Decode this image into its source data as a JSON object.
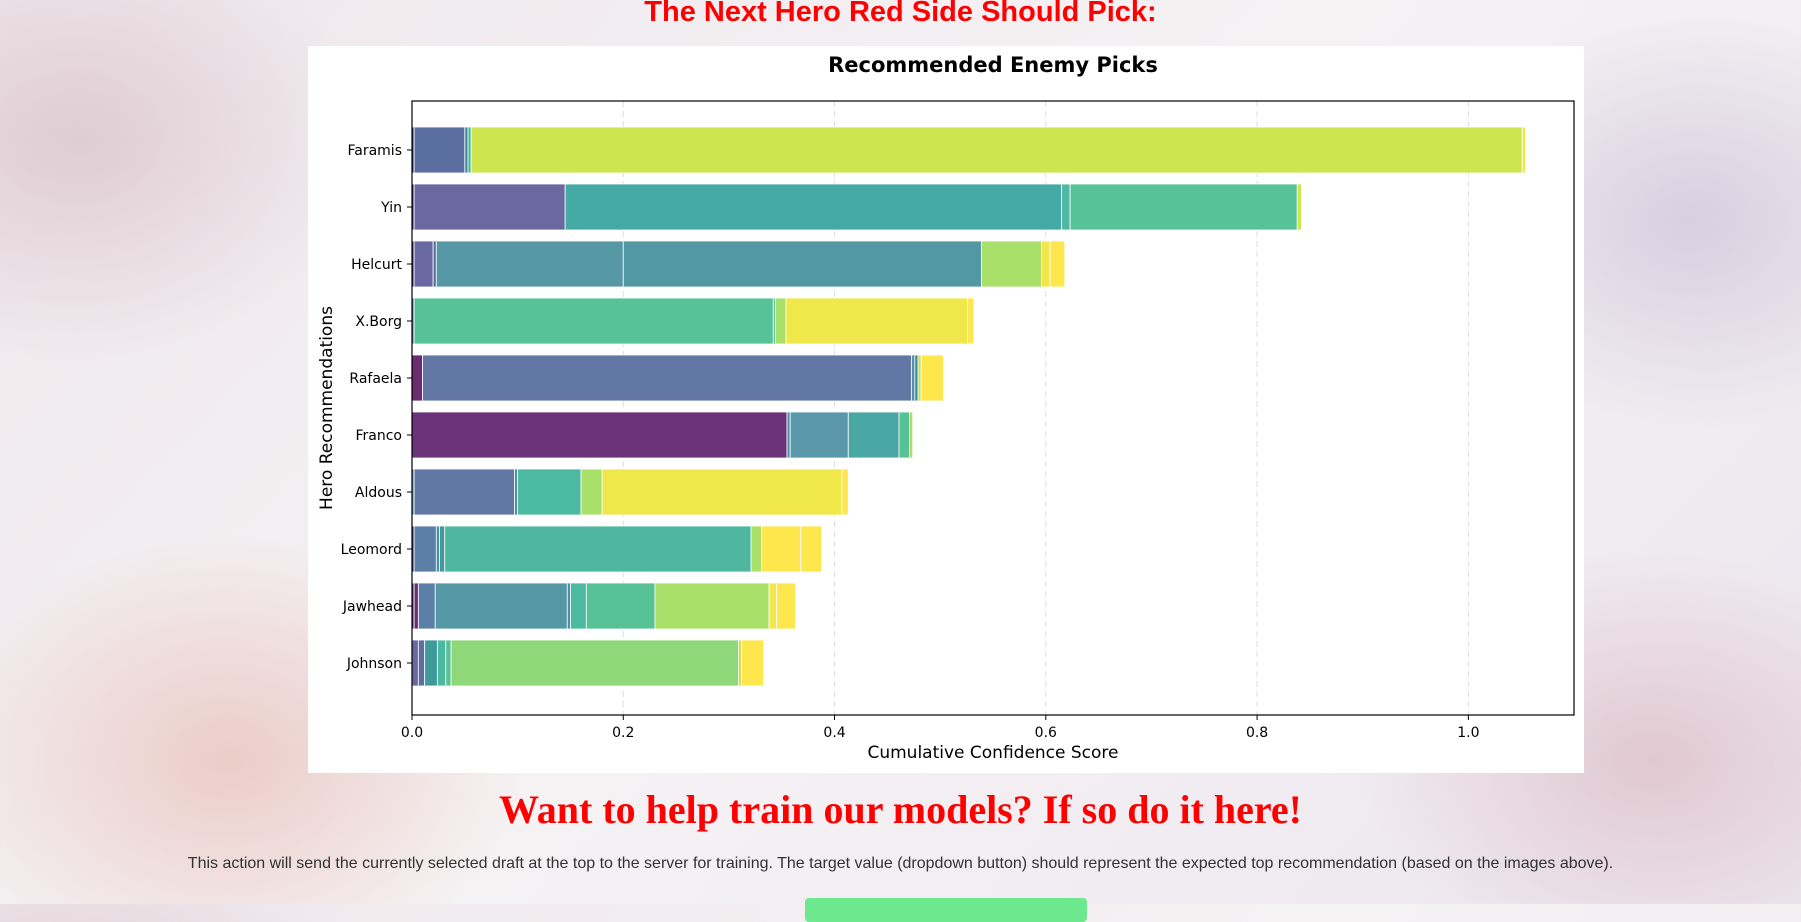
{
  "page": {
    "heading": "The Next Hero Red Side Should Pick:",
    "cta_heading": "Want to help train our models? If so do it here!",
    "info_text": "This action will send the currently selected draft at the top to the server for training. The target value (dropdown button) should represent the expected top recommendation (based on the images above).",
    "button_color": "#6ee88f"
  },
  "chart_data": {
    "type": "bar",
    "orientation": "horizontal",
    "stacked": true,
    "title": "Recommended Enemy Picks",
    "xlabel": "Cumulative Confidence Score",
    "ylabel": "Hero Recommendations",
    "xlim": [
      0,
      1.1
    ],
    "xticks": [
      "0.0",
      "0.2",
      "0.4",
      "0.6",
      "0.8",
      "1.0"
    ],
    "grid": "x dashed",
    "categories": [
      "Faramis",
      "Yin",
      "Helcurt",
      "X.Borg",
      "Rafaela",
      "Franco",
      "Aldous",
      "Leomord",
      "Jawhead",
      "Johnson"
    ],
    "segments": [
      [
        [
          0.002,
          "#482878"
        ],
        [
          0.048,
          "#5b6ea0"
        ],
        [
          0.003,
          "#3e8a9a"
        ],
        [
          0.003,
          "#48b79a"
        ],
        [
          0.995,
          "#cde54f"
        ],
        [
          0.003,
          "#f2e74a"
        ]
      ],
      [
        [
          0.002,
          "#482878"
        ],
        [
          0.143,
          "#6a68a0"
        ],
        [
          0.47,
          "#45aaa6"
        ],
        [
          0.008,
          "#4fb7a4"
        ],
        [
          0.215,
          "#58c297"
        ],
        [
          0.004,
          "#cde54f"
        ]
      ],
      [
        [
          0.002,
          "#482878"
        ],
        [
          0.018,
          "#6a68a0"
        ],
        [
          0.003,
          "#5b6ea0"
        ],
        [
          0.177,
          "#5698a6"
        ],
        [
          0.339,
          "#5298a4"
        ],
        [
          0.057,
          "#a8e06a"
        ],
        [
          0.008,
          "#f2e74a"
        ],
        [
          0.014,
          "#fde74c"
        ]
      ],
      [
        [
          0.002,
          "#5b6ea0"
        ],
        [
          0.34,
          "#58c297"
        ],
        [
          0.002,
          "#58c297"
        ],
        [
          0.01,
          "#a8e06a"
        ],
        [
          0.172,
          "#f0e84a"
        ],
        [
          0.006,
          "#fde74c"
        ]
      ],
      [
        [
          0.01,
          "#6a2c70"
        ],
        [
          0.463,
          "#6277a4"
        ],
        [
          0.003,
          "#4d8fa8"
        ],
        [
          0.003,
          "#3e8a9a"
        ],
        [
          0.003,
          "#c8e060"
        ],
        [
          0.021,
          "#fde74c"
        ]
      ],
      [
        [
          0.355,
          "#6a3278"
        ],
        [
          0.003,
          "#4d8fa8"
        ],
        [
          0.055,
          "#5a97a8"
        ],
        [
          0.048,
          "#4aa8a4"
        ],
        [
          0.01,
          "#58c297"
        ],
        [
          0.003,
          "#a8e06a"
        ]
      ],
      [
        [
          0.002,
          "#4d8fa8"
        ],
        [
          0.095,
          "#6277a4"
        ],
        [
          0.003,
          "#4d8fa8"
        ],
        [
          0.06,
          "#4cbaa0"
        ],
        [
          0.02,
          "#a8e06a"
        ],
        [
          0.227,
          "#f0e84a"
        ],
        [
          0.006,
          "#fde74c"
        ]
      ],
      [
        [
          0.002,
          "#482878"
        ],
        [
          0.021,
          "#5b7fa6"
        ],
        [
          0.003,
          "#4d8fa8"
        ],
        [
          0.005,
          "#3e9a9a"
        ],
        [
          0.29,
          "#4fb7a0"
        ],
        [
          0.01,
          "#a8e06a"
        ],
        [
          0.037,
          "#fde74c"
        ],
        [
          0.02,
          "#fde74c"
        ]
      ],
      [
        [
          0.002,
          "#482878"
        ],
        [
          0.004,
          "#6a2c70"
        ],
        [
          0.016,
          "#5b7fa6"
        ],
        [
          0.125,
          "#5698a6"
        ],
        [
          0.003,
          "#4d8fa8"
        ],
        [
          0.015,
          "#4cbaa0"
        ],
        [
          0.065,
          "#58c297"
        ],
        [
          0.108,
          "#a8e06a"
        ],
        [
          0.007,
          "#f2e74a"
        ],
        [
          0.018,
          "#fde74c"
        ]
      ],
      [
        [
          0.006,
          "#6a68a0"
        ],
        [
          0.006,
          "#5b6ea0"
        ],
        [
          0.012,
          "#3e9a9a"
        ],
        [
          0.008,
          "#4cbaa0"
        ],
        [
          0.005,
          "#58c297"
        ],
        [
          0.272,
          "#8ed87a"
        ],
        [
          0.003,
          "#c8e060"
        ],
        [
          0.021,
          "#fde74c"
        ]
      ]
    ]
  }
}
